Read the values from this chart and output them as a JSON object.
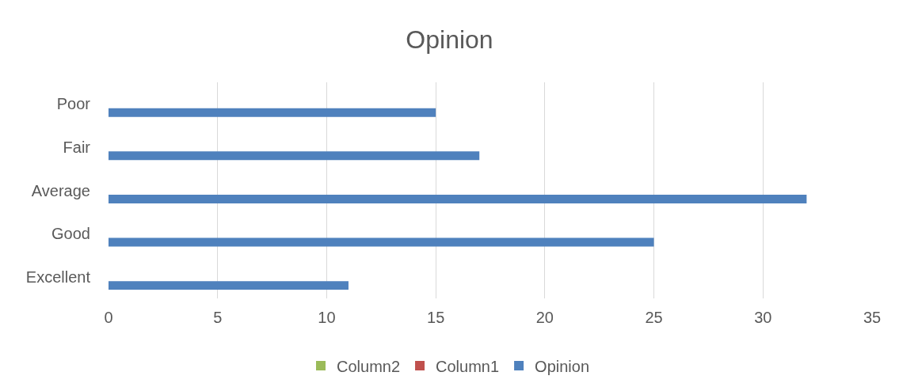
{
  "chart_data": {
    "type": "bar",
    "title": "Opinion",
    "orientation": "horizontal",
    "categories": [
      "Poor",
      "Fair",
      "Average",
      "Good",
      "Excellent"
    ],
    "series": [
      {
        "name": "Column2",
        "color": "#9bbb59",
        "values": [
          null,
          null,
          null,
          null,
          null
        ]
      },
      {
        "name": "Column1",
        "color": "#c0504d",
        "values": [
          null,
          null,
          null,
          null,
          null
        ]
      },
      {
        "name": "Opinion",
        "color": "#4f81bd",
        "values": [
          15,
          17,
          32,
          25,
          11
        ]
      }
    ],
    "xlim": [
      0,
      35
    ],
    "xticks": [
      0,
      5,
      10,
      15,
      20,
      25,
      30,
      35
    ],
    "grid": "x",
    "legend": "bottom"
  }
}
